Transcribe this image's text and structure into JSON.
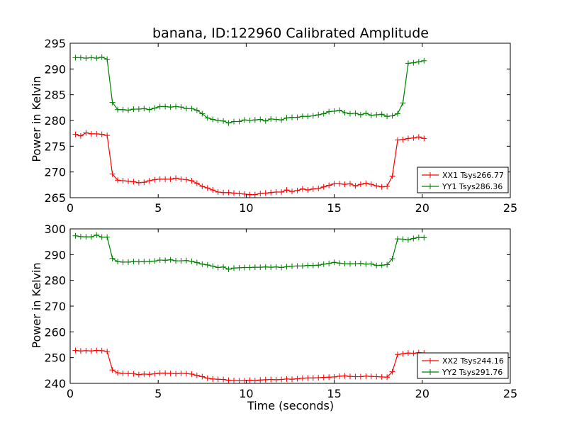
{
  "chart_data": [
    {
      "type": "line",
      "title": "banana, ID:122960 Calibrated Amplitude",
      "xlabel": "",
      "ylabel": "Power in Kelvin",
      "xlim": [
        0,
        25
      ],
      "ylim": [
        265,
        295
      ],
      "xticks": [
        0,
        5,
        10,
        15,
        20,
        25
      ],
      "yticks": [
        265,
        270,
        275,
        280,
        285,
        290,
        295
      ],
      "grid": false,
      "legend_position": "lower-right",
      "series": [
        {
          "name": "XX1 Tsys266.77",
          "color": "#ff0000",
          "x": [
            0.3,
            0.6,
            0.9,
            1.2,
            1.5,
            1.8,
            2.1,
            2.4,
            2.7,
            3.0,
            3.3,
            3.6,
            3.9,
            4.2,
            4.5,
            4.8,
            5.1,
            5.4,
            5.7,
            6.0,
            6.3,
            6.6,
            6.9,
            7.2,
            7.5,
            7.8,
            8.1,
            8.4,
            8.7,
            9.0,
            9.3,
            9.6,
            9.9,
            10.2,
            10.5,
            10.8,
            11.1,
            11.4,
            11.7,
            12.0,
            12.3,
            12.6,
            12.9,
            13.2,
            13.5,
            13.8,
            14.1,
            14.4,
            14.7,
            15.0,
            15.3,
            15.6,
            15.9,
            16.2,
            16.5,
            16.8,
            17.1,
            17.4,
            17.7,
            18.0,
            18.3,
            18.6,
            18.9,
            19.2,
            19.5,
            19.8,
            20.1
          ],
          "y": [
            277.3,
            277.0,
            277.6,
            277.4,
            277.4,
            277.3,
            277.1,
            269.6,
            268.4,
            268.3,
            268.2,
            268.1,
            267.9,
            268.0,
            268.3,
            268.5,
            268.6,
            268.6,
            268.6,
            268.8,
            268.6,
            268.5,
            268.3,
            267.8,
            267.2,
            266.9,
            266.5,
            266.1,
            266.0,
            266.0,
            265.9,
            265.8,
            265.7,
            265.6,
            265.6,
            265.8,
            265.9,
            266.0,
            266.1,
            266.1,
            266.5,
            266.2,
            266.4,
            266.7,
            266.5,
            266.7,
            266.8,
            267.1,
            267.4,
            267.7,
            267.7,
            267.6,
            267.7,
            267.3,
            267.6,
            267.8,
            267.6,
            267.3,
            267.1,
            267.2,
            269.2,
            276.2,
            276.3,
            276.5,
            276.6,
            276.8,
            276.5
          ]
        },
        {
          "name": "YY1 Tsys286.36",
          "color": "#008000",
          "x": [
            0.3,
            0.6,
            0.9,
            1.2,
            1.5,
            1.8,
            2.1,
            2.4,
            2.7,
            3.0,
            3.3,
            3.6,
            3.9,
            4.2,
            4.5,
            4.8,
            5.1,
            5.4,
            5.7,
            6.0,
            6.3,
            6.6,
            6.9,
            7.2,
            7.5,
            7.8,
            8.1,
            8.4,
            8.7,
            9.0,
            9.3,
            9.6,
            9.9,
            10.2,
            10.5,
            10.8,
            11.1,
            11.4,
            11.7,
            12.0,
            12.3,
            12.6,
            12.9,
            13.2,
            13.5,
            13.8,
            14.1,
            14.4,
            14.7,
            15.0,
            15.3,
            15.6,
            15.9,
            16.2,
            16.5,
            16.8,
            17.1,
            17.4,
            17.7,
            18.0,
            18.3,
            18.6,
            18.9,
            19.2,
            19.5,
            19.8,
            20.1
          ],
          "y": [
            292.2,
            292.2,
            292.1,
            292.2,
            292.1,
            292.3,
            291.9,
            283.5,
            282.1,
            282.1,
            282.0,
            282.2,
            282.2,
            282.3,
            282.1,
            282.4,
            282.7,
            282.7,
            282.6,
            282.7,
            282.6,
            282.3,
            282.3,
            282.0,
            281.3,
            280.5,
            280.2,
            280.0,
            279.9,
            279.5,
            279.8,
            279.8,
            280.1,
            280.0,
            280.1,
            280.2,
            279.9,
            280.3,
            280.2,
            280.1,
            280.5,
            280.6,
            280.6,
            280.8,
            280.8,
            280.9,
            281.1,
            281.3,
            281.7,
            281.8,
            282.0,
            281.5,
            281.3,
            281.4,
            281.1,
            281.4,
            281.0,
            281.1,
            281.2,
            280.8,
            280.9,
            281.3,
            283.4,
            291.1,
            291.2,
            291.4,
            291.6
          ]
        }
      ]
    },
    {
      "type": "line",
      "title": "",
      "xlabel": "Time (seconds)",
      "ylabel": "Power in Kelvin",
      "xlim": [
        0,
        25
      ],
      "ylim": [
        240,
        300
      ],
      "xticks": [
        0,
        5,
        10,
        15,
        20,
        25
      ],
      "yticks": [
        240,
        250,
        260,
        270,
        280,
        290,
        300
      ],
      "grid": false,
      "legend_position": "lower-right",
      "series": [
        {
          "name": "XX2 Tsys244.16",
          "color": "#ff0000",
          "x": [
            0.3,
            0.6,
            0.9,
            1.2,
            1.5,
            1.8,
            2.1,
            2.4,
            2.7,
            3.0,
            3.3,
            3.6,
            3.9,
            4.2,
            4.5,
            4.8,
            5.1,
            5.4,
            5.7,
            6.0,
            6.3,
            6.6,
            6.9,
            7.2,
            7.5,
            7.8,
            8.1,
            8.4,
            8.7,
            9.0,
            9.3,
            9.6,
            9.9,
            10.2,
            10.5,
            10.8,
            11.1,
            11.4,
            11.7,
            12.0,
            12.3,
            12.6,
            12.9,
            13.2,
            13.5,
            13.8,
            14.1,
            14.4,
            14.7,
            15.0,
            15.3,
            15.6,
            15.9,
            16.2,
            16.5,
            16.8,
            17.1,
            17.4,
            17.7,
            18.0,
            18.3,
            18.6,
            18.9,
            19.2,
            19.5,
            19.8,
            20.1
          ],
          "y": [
            252.8,
            252.6,
            252.7,
            252.6,
            252.8,
            252.7,
            252.4,
            245.2,
            244.1,
            243.9,
            243.8,
            243.7,
            243.4,
            243.6,
            243.5,
            243.7,
            244.0,
            244.0,
            243.9,
            243.7,
            243.9,
            243.8,
            243.6,
            243.1,
            242.6,
            242.0,
            241.7,
            241.6,
            241.5,
            241.2,
            241.1,
            241.0,
            241.0,
            241.2,
            241.0,
            241.3,
            241.4,
            241.5,
            241.4,
            241.5,
            241.7,
            241.6,
            241.8,
            242.0,
            242.1,
            242.1,
            242.2,
            242.3,
            242.4,
            242.5,
            242.8,
            242.9,
            242.7,
            242.6,
            242.6,
            242.8,
            242.7,
            242.6,
            242.5,
            242.4,
            244.5,
            251.2,
            251.5,
            251.8,
            251.7,
            251.9,
            251.8
          ]
        },
        {
          "name": "YY2 Tsys291.76",
          "color": "#008000",
          "x": [
            0.3,
            0.6,
            0.9,
            1.2,
            1.5,
            1.8,
            2.1,
            2.4,
            2.7,
            3.0,
            3.3,
            3.6,
            3.9,
            4.2,
            4.5,
            4.8,
            5.1,
            5.4,
            5.7,
            6.0,
            6.3,
            6.6,
            6.9,
            7.2,
            7.5,
            7.8,
            8.1,
            8.4,
            8.7,
            9.0,
            9.3,
            9.6,
            9.9,
            10.2,
            10.5,
            10.8,
            11.1,
            11.4,
            11.7,
            12.0,
            12.3,
            12.6,
            12.9,
            13.2,
            13.5,
            13.8,
            14.1,
            14.4,
            14.7,
            15.0,
            15.3,
            15.6,
            15.9,
            16.2,
            16.5,
            16.8,
            17.1,
            17.4,
            17.7,
            18.0,
            18.3,
            18.6,
            18.9,
            19.2,
            19.5,
            19.8,
            20.1
          ],
          "y": [
            297.3,
            297.0,
            296.9,
            296.9,
            297.6,
            296.8,
            296.8,
            288.5,
            287.3,
            287.1,
            287.1,
            287.3,
            287.2,
            287.3,
            287.3,
            287.5,
            287.9,
            287.8,
            288.0,
            287.6,
            287.6,
            287.7,
            287.4,
            286.9,
            286.3,
            286.0,
            285.5,
            285.0,
            285.2,
            284.3,
            284.8,
            284.9,
            285.0,
            285.0,
            285.1,
            285.1,
            285.2,
            285.1,
            285.2,
            285.0,
            285.3,
            285.5,
            285.6,
            285.6,
            285.8,
            285.8,
            285.9,
            286.3,
            286.6,
            287.0,
            286.7,
            286.5,
            286.4,
            286.5,
            286.6,
            286.3,
            286.4,
            285.8,
            285.9,
            286.1,
            288.4,
            296.1,
            296.0,
            295.7,
            296.3,
            296.7,
            296.6
          ]
        }
      ]
    }
  ]
}
